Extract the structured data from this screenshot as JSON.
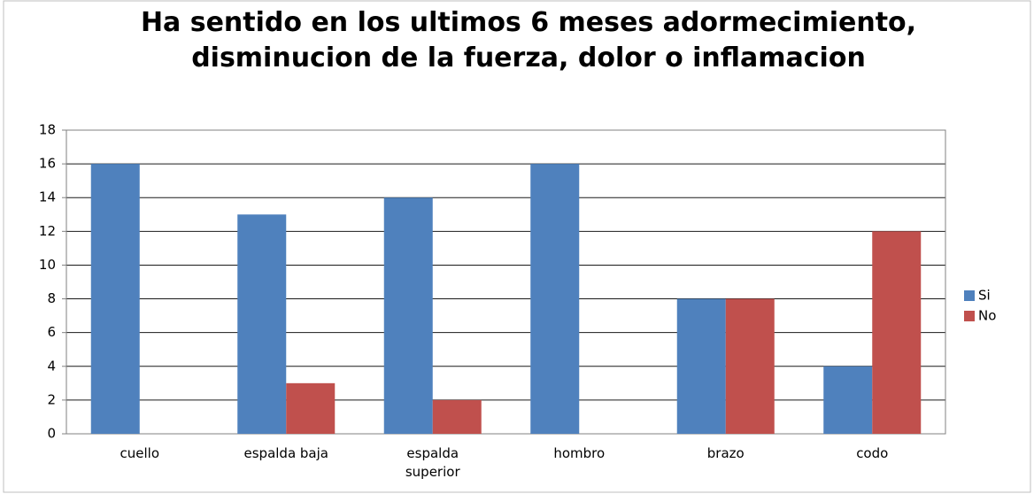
{
  "chart_data": {
    "type": "bar",
    "title": "Ha sentido en los ultimos 6 meses adormecimiento, disminucion de la fuerza, dolor o inflamacion",
    "categories": [
      "cuello",
      "espalda baja",
      "espalda superior",
      "hombro",
      "brazo",
      "codo"
    ],
    "series": [
      {
        "name": "Si",
        "color": "#4f81bd",
        "values": [
          16,
          13,
          14,
          16,
          8,
          4
        ]
      },
      {
        "name": "No",
        "color": "#c0504d",
        "values": [
          0,
          3,
          2,
          0,
          8,
          12
        ]
      }
    ],
    "ylim": [
      0,
      18
    ],
    "yticks": [
      0,
      2,
      4,
      6,
      8,
      10,
      12,
      14,
      16,
      18
    ],
    "grid": true,
    "legend": "right"
  }
}
